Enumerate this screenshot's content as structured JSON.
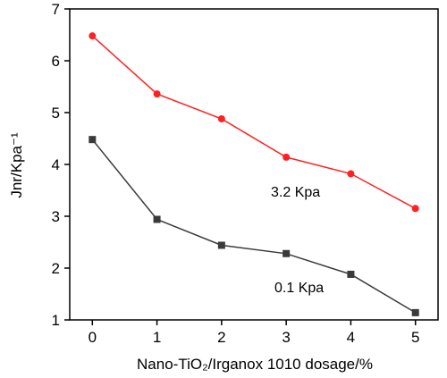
{
  "chart_data": {
    "type": "line",
    "xlabel": "Nano-TiO₂/Irganox 1010 dosage/%",
    "ylabel": "Jnr/Kpa⁻¹",
    "x": [
      0,
      1,
      2,
      3,
      4,
      5
    ],
    "xlim": [
      -0.35,
      5.35
    ],
    "ylim": [
      1,
      7
    ],
    "xticks": [
      "0",
      "1",
      "2",
      "3",
      "4",
      "5"
    ],
    "yticks": [
      "1",
      "2",
      "3",
      "4",
      "5",
      "6",
      "7"
    ],
    "grid": false,
    "series": [
      {
        "name": "3.2 Kpa",
        "values": [
          6.48,
          5.36,
          4.88,
          4.14,
          3.82,
          3.15
        ],
        "color": "#ff2020",
        "marker": "circle"
      },
      {
        "name": "0.1 Kpa",
        "values": [
          4.48,
          2.94,
          2.44,
          2.28,
          1.88,
          1.14
        ],
        "color": "#3a3a3a",
        "marker": "square"
      }
    ]
  }
}
